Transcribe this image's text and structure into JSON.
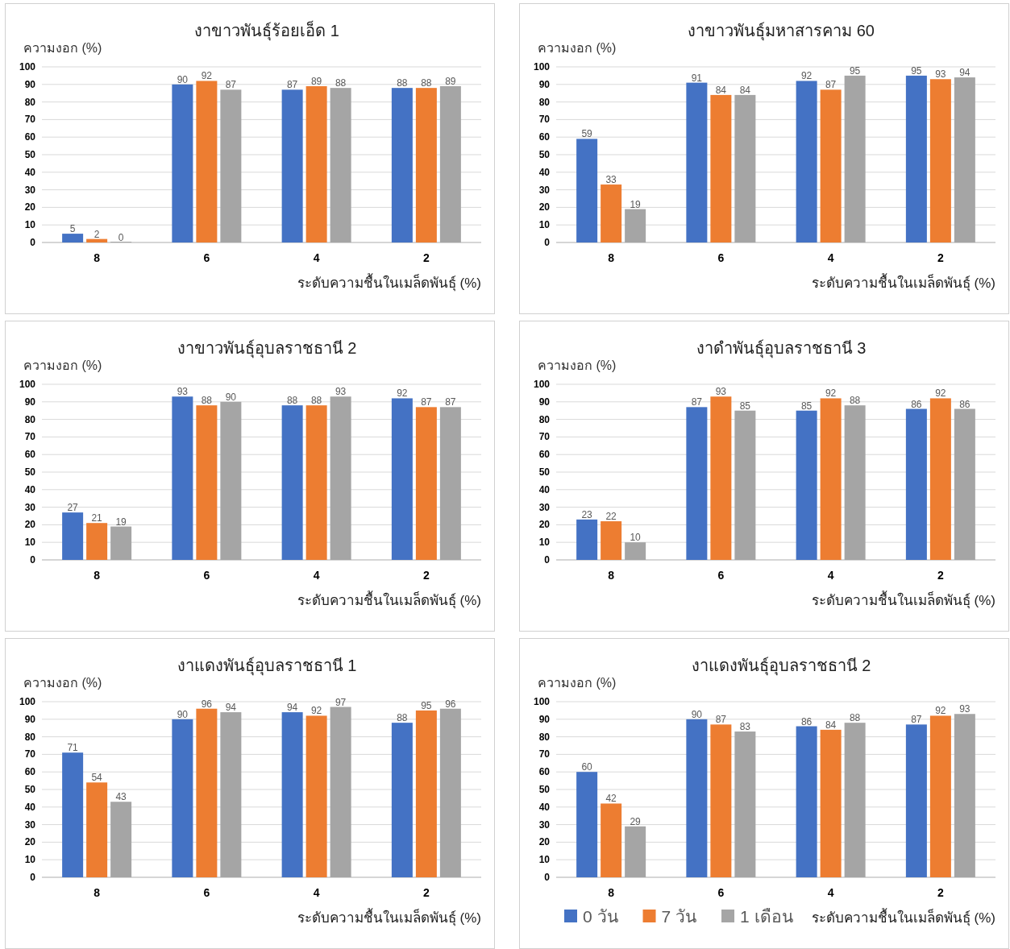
{
  "chart_data": [
    {
      "type": "bar",
      "title": "งาขาวพันธุ์ร้อยเอ็ด 1",
      "ylabel": "ความงอก (%)",
      "xlabel": "ระดับความชื้นในเมล็ดพันธุ์ (%)",
      "categories": [
        "8",
        "6",
        "4",
        "2"
      ],
      "ylim": [
        0,
        100
      ],
      "yticks": [
        0,
        10,
        20,
        30,
        40,
        50,
        60,
        70,
        80,
        90,
        100
      ],
      "grid": "y",
      "data_labels": true,
      "series": [
        {
          "color": "#4472c4",
          "values": [
            5,
            90,
            87,
            88
          ]
        },
        {
          "color": "#ed7d31",
          "values": [
            2,
            92,
            89,
            88
          ]
        },
        {
          "color": "#a5a5a5",
          "values": [
            0,
            87,
            88,
            89
          ]
        }
      ]
    },
    {
      "type": "bar",
      "title": "งาขาวพันธุ์มหาสารคาม 60",
      "ylabel": "ความงอก (%)",
      "xlabel": "ระดับความชื้นในเมล็ดพันธุ์ (%)",
      "categories": [
        "8",
        "6",
        "4",
        "2"
      ],
      "ylim": [
        0,
        100
      ],
      "yticks": [
        0,
        10,
        20,
        30,
        40,
        50,
        60,
        70,
        80,
        90,
        100
      ],
      "grid": "y",
      "data_labels": true,
      "series": [
        {
          "color": "#4472c4",
          "values": [
            59,
            91,
            92,
            95
          ]
        },
        {
          "color": "#ed7d31",
          "values": [
            33,
            84,
            87,
            93
          ]
        },
        {
          "color": "#a5a5a5",
          "values": [
            19,
            84,
            95,
            94
          ]
        }
      ]
    },
    {
      "type": "bar",
      "title": "งาขาวพันธุ์อุบลราชธานี 2",
      "ylabel": "ความงอก (%)",
      "xlabel": "ระดับความชื้นในเมล็ดพันธุ์ (%)",
      "categories": [
        "8",
        "6",
        "4",
        "2"
      ],
      "ylim": [
        0,
        100
      ],
      "yticks": [
        0,
        10,
        20,
        30,
        40,
        50,
        60,
        70,
        80,
        90,
        100
      ],
      "grid": "y",
      "data_labels": true,
      "series": [
        {
          "color": "#4472c4",
          "values": [
            27,
            93,
            88,
            92
          ]
        },
        {
          "color": "#ed7d31",
          "values": [
            21,
            88,
            88,
            87
          ]
        },
        {
          "color": "#a5a5a5",
          "values": [
            19,
            90,
            93,
            87
          ]
        }
      ]
    },
    {
      "type": "bar",
      "title": "งาดำพันธุ์อุบลราชธานี 3",
      "ylabel": "ความงอก (%)",
      "xlabel": "ระดับความชื้นในเมล็ดพันธุ์ (%)",
      "categories": [
        "8",
        "6",
        "4",
        "2"
      ],
      "ylim": [
        0,
        100
      ],
      "yticks": [
        0,
        10,
        20,
        30,
        40,
        50,
        60,
        70,
        80,
        90,
        100
      ],
      "grid": "y",
      "data_labels": true,
      "series": [
        {
          "color": "#4472c4",
          "values": [
            23,
            87,
            85,
            86
          ]
        },
        {
          "color": "#ed7d31",
          "values": [
            22,
            93,
            92,
            92
          ]
        },
        {
          "color": "#a5a5a5",
          "values": [
            10,
            85,
            88,
            86
          ]
        }
      ]
    },
    {
      "type": "bar",
      "title": "งาแดงพันธุ์อุบลราชธานี 1",
      "ylabel": "ความงอก (%)",
      "xlabel": "ระดับความชื้นในเมล็ดพันธุ์ (%)",
      "categories": [
        "8",
        "6",
        "4",
        "2"
      ],
      "ylim": [
        0,
        100
      ],
      "yticks": [
        0,
        10,
        20,
        30,
        40,
        50,
        60,
        70,
        80,
        90,
        100
      ],
      "grid": "y",
      "data_labels": true,
      "series": [
        {
          "color": "#4472c4",
          "values": [
            71,
            90,
            94,
            88
          ]
        },
        {
          "color": "#ed7d31",
          "values": [
            54,
            96,
            92,
            95
          ]
        },
        {
          "color": "#a5a5a5",
          "values": [
            43,
            94,
            97,
            96
          ]
        }
      ]
    },
    {
      "type": "bar",
      "title": "งาแดงพันธุ์อุบลราชธานี 2",
      "ylabel": "ความงอก (%)",
      "xlabel": "ระดับความชื้นในเมล็ดพันธุ์ (%)",
      "categories": [
        "8",
        "6",
        "4",
        "2"
      ],
      "ylim": [
        0,
        100
      ],
      "yticks": [
        0,
        10,
        20,
        30,
        40,
        50,
        60,
        70,
        80,
        90,
        100
      ],
      "grid": "y",
      "data_labels": true,
      "legend": "bottom left",
      "series": [
        {
          "name": "0 วัน",
          "color": "#4472c4",
          "values": [
            60,
            90,
            86,
            87
          ]
        },
        {
          "name": "7 วัน",
          "color": "#ed7d31",
          "values": [
            42,
            87,
            84,
            92
          ]
        },
        {
          "name": "1 เดือน",
          "color": "#a5a5a5",
          "values": [
            29,
            83,
            88,
            93
          ]
        }
      ]
    }
  ]
}
